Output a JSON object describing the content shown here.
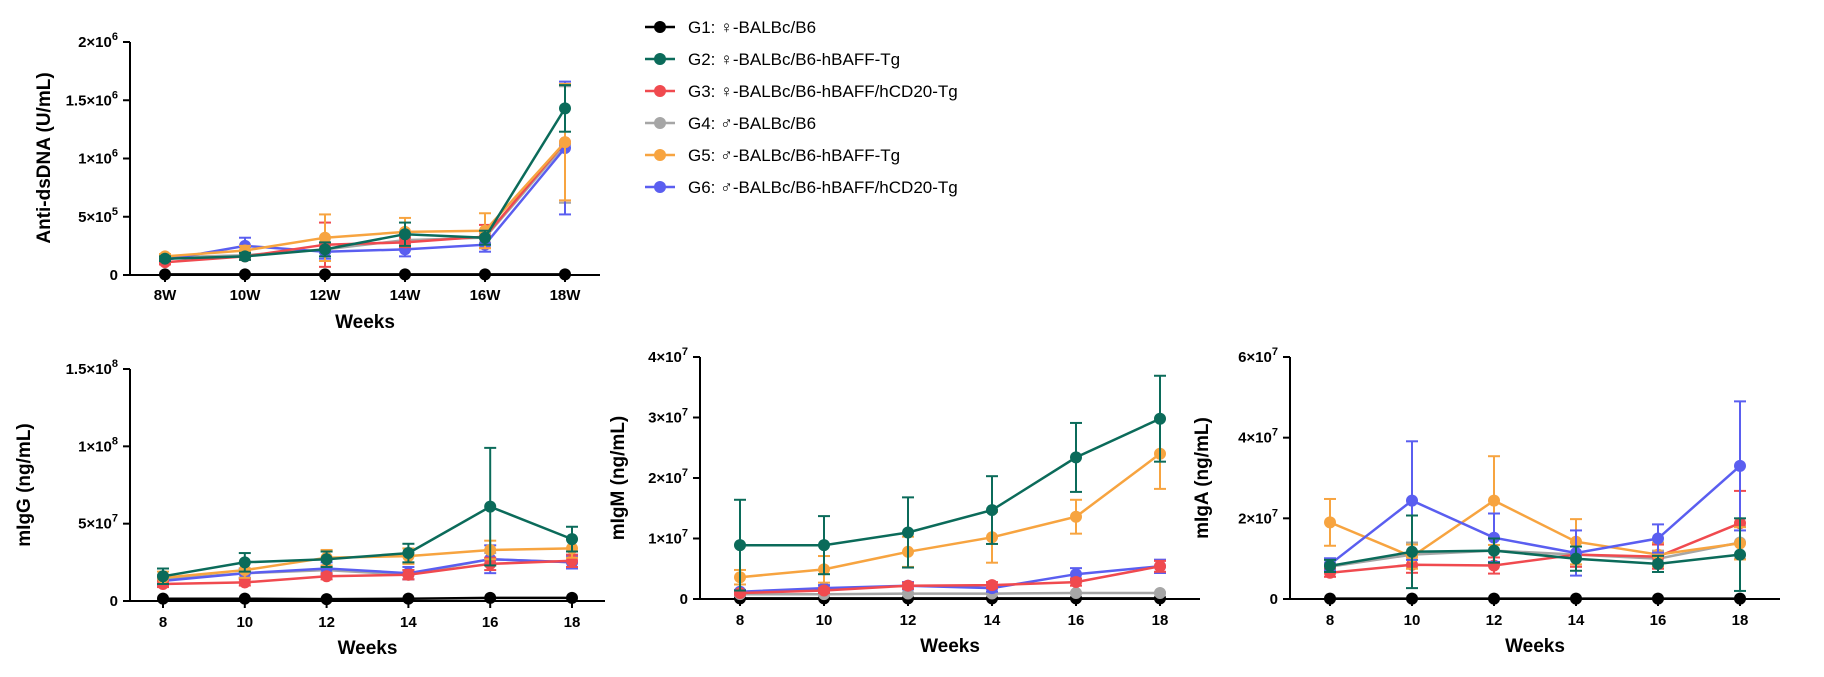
{
  "legend": [
    {
      "id": "G1",
      "label": "G1: ♀-BALBc/B6",
      "color": "#000000"
    },
    {
      "id": "G2",
      "label": "G2: ♀-BALBc/B6-hBAFF-Tg",
      "color": "#0b6b5a"
    },
    {
      "id": "G3",
      "label": "G3: ♀-BALBc/B6-hBAFF/hCD20-Tg",
      "color": "#f04a4f"
    },
    {
      "id": "G4",
      "label": "G4: ♂-BALBc/B6",
      "color": "#a6a6a6"
    },
    {
      "id": "G5",
      "label": "G5: ♂-BALBc/B6-hBAFF-Tg",
      "color": "#f7a440"
    },
    {
      "id": "G6",
      "label": "G6: ♂-BALBc/B6-hBAFF/hCD20-Tg",
      "color": "#5a5ef0"
    }
  ],
  "chart_data": [
    {
      "type": "line",
      "ylabel": "Anti-dsDNA (U/mL)",
      "xlabel": "Weeks",
      "categories": [
        "8W",
        "10W",
        "12W",
        "14W",
        "16W",
        "18W"
      ],
      "ylim": [
        0,
        2000000
      ],
      "yticks": [
        0,
        500000,
        1000000,
        1500000,
        2000000
      ],
      "ytick_labels": [
        "0",
        "5×10",
        "1×10",
        "1.5×10",
        "2×10"
      ],
      "ytick_exps": [
        "",
        "5",
        "6",
        "6",
        "6"
      ],
      "series": [
        {
          "name": "G1",
          "values": [
            5000,
            5000,
            5000,
            5000,
            5000,
            5000
          ],
          "err": [
            0,
            0,
            0,
            0,
            0,
            0
          ]
        },
        {
          "name": "G4",
          "values": [
            150000,
            170000,
            220000,
            300000,
            320000,
            1120000
          ],
          "err": [
            20000,
            20000,
            30000,
            40000,
            40000,
            500000
          ]
        },
        {
          "name": "G6",
          "values": [
            130000,
            250000,
            200000,
            220000,
            260000,
            1090000
          ],
          "err": [
            20000,
            70000,
            60000,
            60000,
            60000,
            570000
          ]
        },
        {
          "name": "G3",
          "values": [
            110000,
            160000,
            260000,
            280000,
            330000,
            1140000
          ],
          "err": [
            20000,
            30000,
            190000,
            40000,
            100000,
            500000
          ]
        },
        {
          "name": "G5",
          "values": [
            160000,
            210000,
            320000,
            370000,
            380000,
            1140000
          ],
          "err": [
            20000,
            40000,
            200000,
            120000,
            150000,
            500000
          ]
        },
        {
          "name": "G2",
          "values": [
            140000,
            160000,
            220000,
            350000,
            320000,
            1430000
          ],
          "err": [
            20000,
            30000,
            60000,
            100000,
            60000,
            200000
          ]
        }
      ]
    },
    {
      "type": "line",
      "ylabel": "mIgG (ng/mL)",
      "xlabel": "Weeks",
      "categories": [
        "8",
        "10",
        "12",
        "14",
        "16",
        "18"
      ],
      "ylim": [
        0,
        150000000
      ],
      "yticks": [
        0,
        50000000,
        100000000,
        150000000
      ],
      "ytick_labels": [
        "0",
        "5×10",
        "1×10",
        "1.5×10"
      ],
      "ytick_exps": [
        "",
        "7",
        "8",
        "8"
      ],
      "series": [
        {
          "name": "G1",
          "values": [
            1500000,
            1500000,
            1200000,
            1500000,
            2000000,
            2000000
          ],
          "err": [
            0,
            0,
            0,
            0,
            0,
            0
          ]
        },
        {
          "name": "G4",
          "values": [
            14000000,
            18000000,
            20000000,
            17000000,
            27000000,
            25000000
          ],
          "err": [
            3000000,
            3000000,
            3000000,
            3000000,
            4000000,
            4000000
          ]
        },
        {
          "name": "G6",
          "values": [
            13000000,
            18000000,
            21000000,
            18000000,
            27000000,
            25000000
          ],
          "err": [
            3000000,
            3000000,
            4000000,
            4000000,
            9000000,
            4000000
          ]
        },
        {
          "name": "G3",
          "values": [
            11000000,
            12000000,
            16000000,
            17000000,
            24000000,
            26000000
          ],
          "err": [
            2000000,
            2000000,
            2000000,
            3000000,
            4000000,
            4000000
          ]
        },
        {
          "name": "G5",
          "values": [
            15000000,
            20000000,
            28000000,
            29000000,
            33000000,
            34000000
          ],
          "err": [
            4000000,
            5000000,
            5000000,
            5000000,
            6000000,
            6000000
          ]
        },
        {
          "name": "G2",
          "values": [
            16000000,
            25000000,
            27000000,
            31000000,
            61000000,
            40000000
          ],
          "err": [
            5000000,
            6000000,
            5000000,
            6000000,
            38000000,
            8000000
          ]
        }
      ]
    },
    {
      "type": "line",
      "ylabel": "mIgM (ng/mL)",
      "xlabel": "Weeks",
      "categories": [
        "8",
        "10",
        "12",
        "14",
        "16",
        "18"
      ],
      "ylim": [
        0,
        40000000
      ],
      "yticks": [
        0,
        10000000,
        20000000,
        30000000,
        40000000
      ],
      "ytick_labels": [
        "0",
        "1×10",
        "2×10",
        "3×10",
        "4×10"
      ],
      "ytick_exps": [
        "",
        "7",
        "7",
        "7",
        "7"
      ],
      "series": [
        {
          "name": "G1",
          "values": [
            100000,
            100000,
            100000,
            100000,
            100000,
            100000
          ],
          "err": [
            0,
            0,
            0,
            0,
            0,
            0
          ]
        },
        {
          "name": "G4",
          "values": [
            800000,
            800000,
            900000,
            900000,
            1000000,
            1000000
          ],
          "err": [
            100000,
            100000,
            100000,
            100000,
            100000,
            100000
          ]
        },
        {
          "name": "G6",
          "values": [
            1200000,
            1800000,
            2200000,
            1800000,
            4100000,
            5400000
          ],
          "err": [
            300000,
            500000,
            600000,
            600000,
            1000000,
            1100000
          ]
        },
        {
          "name": "G3",
          "values": [
            1000000,
            1400000,
            2200000,
            2300000,
            2800000,
            5400000
          ],
          "err": [
            300000,
            400000,
            500000,
            500000,
            600000,
            900000
          ]
        },
        {
          "name": "G5",
          "values": [
            3600000,
            4900000,
            7800000,
            10200000,
            13600000,
            24000000
          ],
          "err": [
            1200000,
            2200000,
            2500000,
            4200000,
            2800000,
            5800000
          ]
        },
        {
          "name": "G2",
          "values": [
            8900000,
            8900000,
            11000000,
            14700000,
            23400000,
            29800000
          ],
          "err": [
            7500000,
            4800000,
            5800000,
            5600000,
            5700000,
            7100000
          ]
        }
      ]
    },
    {
      "type": "line",
      "ylabel": "mIgA (ng/mL)",
      "xlabel": "Weeks",
      "categories": [
        "8",
        "10",
        "12",
        "14",
        "16",
        "18"
      ],
      "ylim": [
        0,
        60000000
      ],
      "yticks": [
        0,
        20000000,
        40000000,
        60000000
      ],
      "ytick_labels": [
        "0",
        "2×10",
        "4×10",
        "6×10"
      ],
      "ytick_exps": [
        "",
        "7",
        "7",
        "7"
      ],
      "series": [
        {
          "name": "G1",
          "values": [
            100000,
            100000,
            100000,
            100000,
            100000,
            100000
          ],
          "err": [
            0,
            0,
            0,
            0,
            0,
            0
          ]
        },
        {
          "name": "G4",
          "values": [
            8000000,
            11000000,
            12000000,
            11000000,
            10000000,
            14000000
          ],
          "err": [
            1000000,
            3000000,
            3000000,
            3000000,
            2000000,
            4000000
          ]
        },
        {
          "name": "G3",
          "values": [
            6500000,
            8500000,
            8300000,
            11000000,
            10500000,
            18800000
          ],
          "err": [
            1000000,
            2000000,
            2000000,
            3000000,
            3000000,
            8000000
          ]
        },
        {
          "name": "G5",
          "values": [
            19000000,
            10500000,
            24400000,
            14200000,
            11000000,
            13800000
          ],
          "err": [
            5800000,
            3000000,
            11000000,
            5600000,
            3000000,
            4000000
          ]
        },
        {
          "name": "G6",
          "values": [
            8600000,
            24400000,
            15200000,
            11400000,
            15000000,
            33000000
          ],
          "err": [
            1500000,
            14700000,
            6000000,
            5600000,
            3500000,
            16000000
          ]
        },
        {
          "name": "G2",
          "values": [
            8200000,
            11700000,
            12000000,
            10000000,
            8700000,
            11000000
          ],
          "err": [
            1500000,
            9000000,
            3000000,
            3000000,
            2000000,
            9000000
          ]
        }
      ]
    }
  ]
}
